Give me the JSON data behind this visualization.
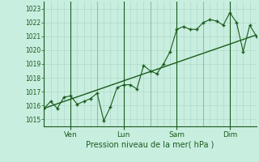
{
  "background_color": "#c8eee0",
  "grid_color_minor": "#b0d8c8",
  "grid_color_major": "#90c0a8",
  "line_color": "#1a5c1a",
  "marker_color": "#1a5c1a",
  "title": "Pression niveau de la mer( hPa )",
  "ylabel_values": [
    1015,
    1016,
    1017,
    1018,
    1019,
    1020,
    1021,
    1022,
    1023
  ],
  "ylim": [
    1014.5,
    1023.5
  ],
  "xlim": [
    0,
    96
  ],
  "day_ticks": [
    {
      "x": 12,
      "label": "Ven"
    },
    {
      "x": 36,
      "label": "Lun"
    },
    {
      "x": 60,
      "label": "Sam"
    },
    {
      "x": 84,
      "label": "Dim"
    }
  ],
  "jagged_x": [
    0,
    3,
    6,
    9,
    12,
    15,
    18,
    21,
    24,
    27,
    30,
    33,
    36,
    39,
    42,
    45,
    48,
    51,
    54,
    57,
    60,
    63,
    66,
    69,
    72,
    75,
    78,
    81,
    84,
    87,
    90,
    93,
    96
  ],
  "jagged_y": [
    1015.8,
    1016.3,
    1015.8,
    1016.6,
    1016.7,
    1016.1,
    1016.3,
    1016.5,
    1016.9,
    1014.9,
    1015.9,
    1017.3,
    1017.5,
    1017.5,
    1017.2,
    1018.9,
    1018.5,
    1018.3,
    1019.0,
    1019.9,
    1021.5,
    1021.7,
    1021.5,
    1021.5,
    1022.0,
    1022.2,
    1022.1,
    1021.8,
    1022.7,
    1022.0,
    1019.9,
    1021.8,
    1021.0
  ],
  "trend_x": [
    0,
    96
  ],
  "trend_y": [
    1015.8,
    1021.1
  ],
  "minor_grid_every": 3,
  "major_grid_x": [
    0,
    24,
    48,
    72,
    96
  ]
}
